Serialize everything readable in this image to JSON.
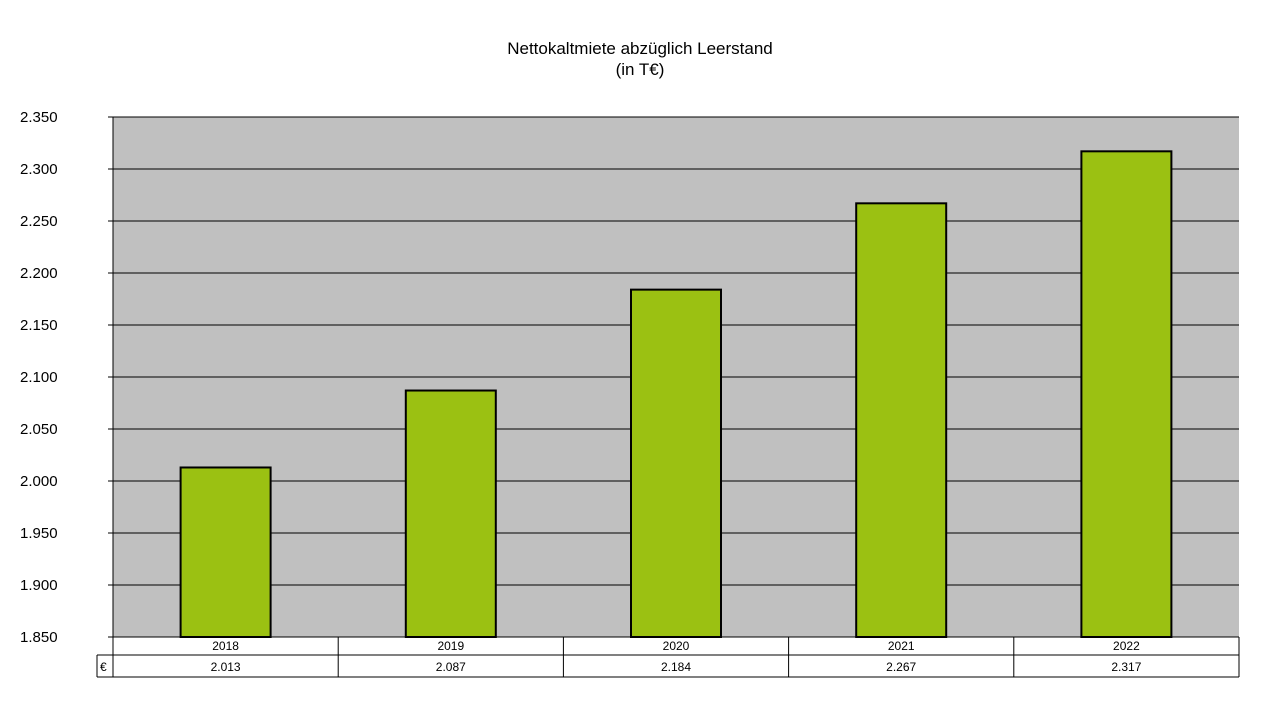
{
  "chart_data": {
    "type": "bar",
    "title": "Nettokaltmiete abzüglich Leerstand",
    "subtitle": "(in T€)",
    "categories": [
      "2018",
      "2019",
      "2020",
      "2021",
      "2022"
    ],
    "series": [
      {
        "name": "€",
        "values": [
          2013,
          2087,
          2184,
          2267,
          2317
        ],
        "labels": [
          "2.013",
          "2.087",
          "2.184",
          "2.267",
          "2.317"
        ]
      }
    ],
    "ylim": [
      1850,
      2350
    ],
    "yticks": [
      1850,
      1900,
      1950,
      2000,
      2050,
      2100,
      2150,
      2200,
      2250,
      2300,
      2350
    ],
    "ytick_labels": [
      "1.850",
      "1.900",
      "1.950",
      "2.000",
      "2.050",
      "2.100",
      "2.150",
      "2.200",
      "2.250",
      "2.300",
      "2.350"
    ],
    "grid": true,
    "data_table": true,
    "colors": {
      "bar": "#9bc112",
      "plot_background": "#c0c0c0",
      "bar_border": "#000000"
    }
  }
}
